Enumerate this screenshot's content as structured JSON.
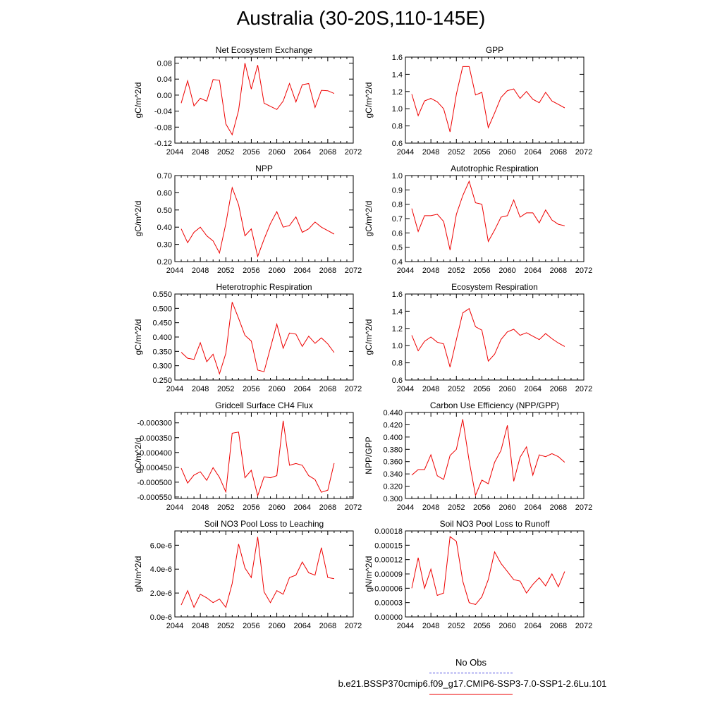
{
  "title": "Australia (30-20S,110-145E)",
  "legend": {
    "obs_label": "No Obs",
    "obs_color": "#4a4adf",
    "run_label": "b.e21.BSSP370cmip6.f09_g17.CMIP6-SSP3-7.0-SSP1-2.6Lu.101",
    "run_color": "#ee0000"
  },
  "chart_data": [
    {
      "type": "line",
      "title": "Net Ecosystem Exchange",
      "ylabel": "gC/m^2/d",
      "xlim": [
        2044,
        2072
      ],
      "xticks": [
        "2044",
        "2048",
        "2052",
        "2056",
        "2060",
        "2064",
        "2068",
        "2072"
      ],
      "ylim": [
        -0.12,
        0.095
      ],
      "yticks": [
        "-0.12",
        "-0.08",
        "-0.04",
        "0.00",
        "0.04",
        "0.08"
      ],
      "x": [
        2045,
        2046,
        2047,
        2048,
        2049,
        2050,
        2051,
        2052,
        2053,
        2054,
        2055,
        2056,
        2057,
        2058,
        2059,
        2060,
        2061,
        2062,
        2063,
        2064,
        2065,
        2066,
        2067,
        2068,
        2069
      ],
      "series": [
        {
          "values": [
            -0.02,
            0.036,
            -0.027,
            -0.008,
            -0.015,
            0.039,
            0.037,
            -0.072,
            -0.099,
            -0.038,
            0.08,
            0.015,
            0.075,
            -0.02,
            -0.028,
            -0.036,
            -0.015,
            0.029,
            -0.017,
            0.026,
            0.029,
            -0.031,
            0.012,
            0.011,
            0.004
          ]
        }
      ]
    },
    {
      "type": "line",
      "title": "GPP",
      "ylabel": "gC/m^2/d",
      "xlim": [
        2044,
        2072
      ],
      "xticks": [
        "2044",
        "2048",
        "2052",
        "2056",
        "2060",
        "2064",
        "2068",
        "2072"
      ],
      "ylim": [
        0.6,
        1.6
      ],
      "yticks": [
        "0.6",
        "0.8",
        "1.0",
        "1.2",
        "1.4",
        "1.6"
      ],
      "x": [
        2045,
        2046,
        2047,
        2048,
        2049,
        2050,
        2051,
        2052,
        2053,
        2054,
        2055,
        2056,
        2057,
        2058,
        2059,
        2060,
        2061,
        2062,
        2063,
        2064,
        2065,
        2066,
        2067,
        2068,
        2069
      ],
      "series": [
        {
          "values": [
            1.17,
            0.92,
            1.09,
            1.12,
            1.08,
            1.0,
            0.73,
            1.17,
            1.49,
            1.49,
            1.16,
            1.19,
            0.78,
            0.95,
            1.13,
            1.21,
            1.23,
            1.12,
            1.2,
            1.11,
            1.07,
            1.19,
            1.09,
            1.05,
            1.01
          ]
        }
      ]
    },
    {
      "type": "line",
      "title": "NPP",
      "ylabel": "gC/m^2/d",
      "xlim": [
        2044,
        2072
      ],
      "xticks": [
        "2044",
        "2048",
        "2052",
        "2056",
        "2060",
        "2064",
        "2068",
        "2072"
      ],
      "ylim": [
        0.2,
        0.7
      ],
      "yticks": [
        "0.20",
        "0.30",
        "0.40",
        "0.50",
        "0.60",
        "0.70"
      ],
      "x": [
        2045,
        2046,
        2047,
        2048,
        2049,
        2050,
        2051,
        2052,
        2053,
        2054,
        2055,
        2056,
        2057,
        2058,
        2059,
        2060,
        2061,
        2062,
        2063,
        2064,
        2065,
        2066,
        2067,
        2068,
        2069
      ],
      "series": [
        {
          "values": [
            0.39,
            0.31,
            0.37,
            0.4,
            0.35,
            0.32,
            0.25,
            0.42,
            0.63,
            0.53,
            0.35,
            0.39,
            0.23,
            0.33,
            0.42,
            0.49,
            0.4,
            0.41,
            0.46,
            0.37,
            0.39,
            0.43,
            0.4,
            0.38,
            0.36
          ]
        }
      ]
    },
    {
      "type": "line",
      "title": "Autotrophic Respiration",
      "ylabel": "gC/m^2/d",
      "xlim": [
        2044,
        2072
      ],
      "xticks": [
        "2044",
        "2048",
        "2052",
        "2056",
        "2060",
        "2064",
        "2068",
        "2072"
      ],
      "ylim": [
        0.4,
        1.0
      ],
      "yticks": [
        "0.4",
        "0.5",
        "0.6",
        "0.7",
        "0.8",
        "0.9",
        "1.0"
      ],
      "x": [
        2045,
        2046,
        2047,
        2048,
        2049,
        2050,
        2051,
        2052,
        2053,
        2054,
        2055,
        2056,
        2057,
        2058,
        2059,
        2060,
        2061,
        2062,
        2063,
        2064,
        2065,
        2066,
        2067,
        2068,
        2069
      ],
      "series": [
        {
          "values": [
            0.77,
            0.61,
            0.72,
            0.72,
            0.73,
            0.68,
            0.48,
            0.73,
            0.86,
            0.96,
            0.81,
            0.8,
            0.54,
            0.62,
            0.71,
            0.72,
            0.83,
            0.71,
            0.74,
            0.74,
            0.67,
            0.76,
            0.69,
            0.66,
            0.65
          ]
        }
      ]
    },
    {
      "type": "line",
      "title": "Heterotrophic Respiration",
      "ylabel": "gC/m^2/d",
      "xlim": [
        2044,
        2072
      ],
      "xticks": [
        "2044",
        "2048",
        "2052",
        "2056",
        "2060",
        "2064",
        "2068",
        "2072"
      ],
      "ylim": [
        0.25,
        0.55
      ],
      "yticks": [
        "0.250",
        "0.300",
        "0.350",
        "0.400",
        "0.450",
        "0.500",
        "0.550"
      ],
      "x": [
        2045,
        2046,
        2047,
        2048,
        2049,
        2050,
        2051,
        2052,
        2053,
        2054,
        2055,
        2056,
        2057,
        2058,
        2059,
        2060,
        2061,
        2062,
        2063,
        2064,
        2065,
        2066,
        2067,
        2068,
        2069
      ],
      "series": [
        {
          "values": [
            0.347,
            0.326,
            0.322,
            0.38,
            0.314,
            0.34,
            0.272,
            0.343,
            0.522,
            0.465,
            0.406,
            0.386,
            0.285,
            0.279,
            0.362,
            0.445,
            0.361,
            0.414,
            0.41,
            0.367,
            0.403,
            0.378,
            0.397,
            0.376,
            0.346
          ]
        }
      ]
    },
    {
      "type": "line",
      "title": "Ecosystem Respiration",
      "ylabel": "gC/m^2/d",
      "xlim": [
        2044,
        2072
      ],
      "xticks": [
        "2044",
        "2048",
        "2052",
        "2056",
        "2060",
        "2064",
        "2068",
        "2072"
      ],
      "ylim": [
        0.6,
        1.6
      ],
      "yticks": [
        "0.6",
        "0.8",
        "1.0",
        "1.2",
        "1.4",
        "1.6"
      ],
      "x": [
        2045,
        2046,
        2047,
        2048,
        2049,
        2050,
        2051,
        2052,
        2053,
        2054,
        2055,
        2056,
        2057,
        2058,
        2059,
        2060,
        2061,
        2062,
        2063,
        2064,
        2065,
        2066,
        2067,
        2068,
        2069
      ],
      "series": [
        {
          "values": [
            1.12,
            0.94,
            1.05,
            1.1,
            1.04,
            1.02,
            0.75,
            1.07,
            1.38,
            1.43,
            1.22,
            1.18,
            0.82,
            0.9,
            1.07,
            1.16,
            1.19,
            1.12,
            1.15,
            1.11,
            1.07,
            1.14,
            1.08,
            1.03,
            0.99
          ]
        }
      ]
    },
    {
      "type": "line",
      "title": "Gridcell Surface CH4 Flux",
      "ylabel": "gC/m^2/d",
      "xlim": [
        2044,
        2072
      ],
      "xticks": [
        "2044",
        "2048",
        "2052",
        "2056",
        "2060",
        "2064",
        "2068",
        "2072"
      ],
      "ylim": [
        -0.000555,
        -0.000265
      ],
      "yticks": [
        "-0.000550",
        "-0.000500",
        "-0.000450",
        "-0.000400",
        "-0.000350",
        "-0.000300"
      ],
      "x": [
        2045,
        2046,
        2047,
        2048,
        2049,
        2050,
        2051,
        2052,
        2053,
        2054,
        2055,
        2056,
        2057,
        2058,
        2059,
        2060,
        2061,
        2062,
        2063,
        2064,
        2065,
        2066,
        2067,
        2068,
        2069
      ],
      "series": [
        {
          "values": [
            -0.000453,
            -0.000503,
            -0.000476,
            -0.000465,
            -0.000494,
            -0.000451,
            -0.000484,
            -0.000533,
            -0.000335,
            -0.000331,
            -0.000485,
            -0.00046,
            -0.000546,
            -0.000482,
            -0.000485,
            -0.000478,
            -0.000293,
            -0.000443,
            -0.000437,
            -0.000443,
            -0.000478,
            -0.000491,
            -0.000534,
            -0.000527,
            -0.000436
          ]
        }
      ]
    },
    {
      "type": "line",
      "title": "Carbon Use Efficiency (NPP/GPP)",
      "ylabel": "NPP/GPP",
      "xlim": [
        2044,
        2072
      ],
      "xticks": [
        "2044",
        "2048",
        "2052",
        "2056",
        "2060",
        "2064",
        "2068",
        "2072"
      ],
      "ylim": [
        0.3,
        0.44
      ],
      "yticks": [
        "0.300",
        "0.320",
        "0.340",
        "0.360",
        "0.380",
        "0.400",
        "0.420",
        "0.440"
      ],
      "x": [
        2045,
        2046,
        2047,
        2048,
        2049,
        2050,
        2051,
        2052,
        2053,
        2054,
        2055,
        2056,
        2057,
        2058,
        2059,
        2060,
        2061,
        2062,
        2063,
        2064,
        2065,
        2066,
        2067,
        2068,
        2069
      ],
      "series": [
        {
          "values": [
            0.338,
            0.347,
            0.347,
            0.371,
            0.337,
            0.331,
            0.37,
            0.38,
            0.429,
            0.361,
            0.305,
            0.33,
            0.324,
            0.359,
            0.378,
            0.419,
            0.328,
            0.367,
            0.384,
            0.338,
            0.371,
            0.368,
            0.373,
            0.368,
            0.359
          ]
        }
      ]
    },
    {
      "type": "line",
      "title": "Soil NO3 Pool Loss to Leaching",
      "ylabel": "gN/m^2/d",
      "xlim": [
        2044,
        2072
      ],
      "xticks": [
        "2044",
        "2048",
        "2052",
        "2056",
        "2060",
        "2064",
        "2068",
        "2072"
      ],
      "ylim": [
        0,
        7.2e-06
      ],
      "yticks": [
        "0.0e-6",
        "2.0e-6",
        "4.0e-6",
        "6.0e-6"
      ],
      "ytick_values": [
        0,
        2e-06,
        4e-06,
        6e-06
      ],
      "x": [
        2045,
        2046,
        2047,
        2048,
        2049,
        2050,
        2051,
        2052,
        2053,
        2054,
        2055,
        2056,
        2057,
        2058,
        2059,
        2060,
        2061,
        2062,
        2063,
        2064,
        2065,
        2066,
        2067,
        2068,
        2069
      ],
      "series": [
        {
          "values": [
            1e-06,
            2.2e-06,
            8e-07,
            1.9e-06,
            1.6e-06,
            1.2e-06,
            1.5e-06,
            8e-07,
            2.8e-06,
            6.1e-06,
            4.1e-06,
            3.3e-06,
            6.7e-06,
            2.1e-06,
            1.2e-06,
            2.2e-06,
            1.9e-06,
            3.3e-06,
            3.5e-06,
            4.6e-06,
            3.7e-06,
            3.5e-06,
            5.8e-06,
            3.3e-06,
            3.2e-06
          ]
        }
      ]
    },
    {
      "type": "line",
      "title": "Soil NO3 Pool Loss to Runoff",
      "ylabel": "gN/m^2/d",
      "xlim": [
        2044,
        2072
      ],
      "xticks": [
        "2044",
        "2048",
        "2052",
        "2056",
        "2060",
        "2064",
        "2068",
        "2072"
      ],
      "ylim": [
        0,
        0.00018
      ],
      "yticks": [
        "0.00000",
        "0.00003",
        "0.00006",
        "0.00009",
        "0.00012",
        "0.00015",
        "0.00018"
      ],
      "x": [
        2045,
        2046,
        2047,
        2048,
        2049,
        2050,
        2051,
        2052,
        2053,
        2054,
        2055,
        2056,
        2057,
        2058,
        2059,
        2060,
        2061,
        2062,
        2063,
        2064,
        2065,
        2066,
        2067,
        2068,
        2069
      ],
      "series": [
        {
          "values": [
            6e-05,
            0.000124,
            6e-05,
            0.0001,
            4.5e-05,
            5e-05,
            0.000168,
            0.000158,
            7.5e-05,
            3e-05,
            2.6e-05,
            4.2e-05,
            7.8e-05,
            0.000136,
            0.000112,
            9.5e-05,
            7.8e-05,
            7.5e-05,
            5e-05,
            6.8e-05,
            8.2e-05,
            6.5e-05,
            9e-05,
            6.3e-05,
            9.5e-05
          ]
        }
      ]
    }
  ]
}
